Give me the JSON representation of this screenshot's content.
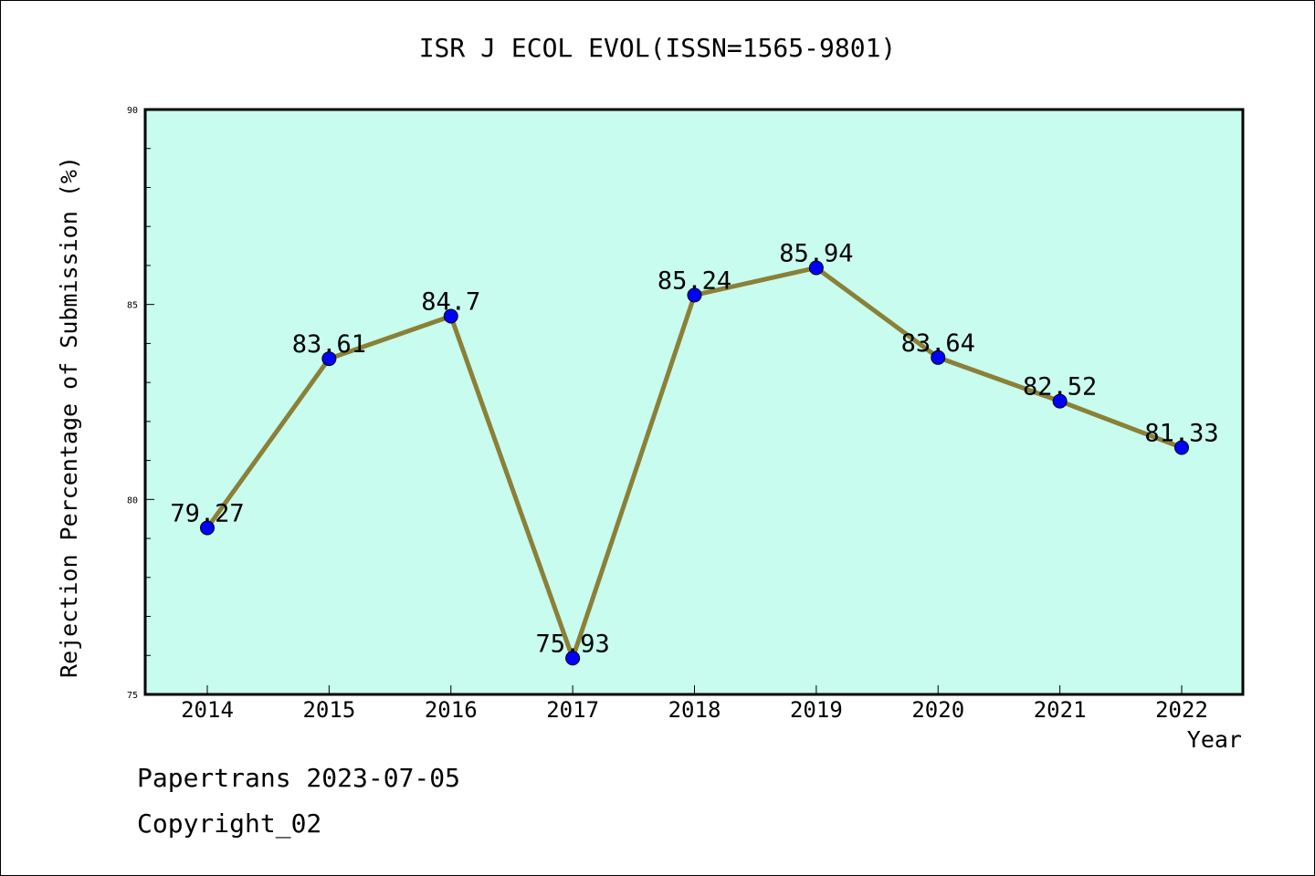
{
  "chart_data": {
    "type": "line",
    "title": "ISR J ECOL EVOL(ISSN=1565-9801)",
    "xlabel": "Year",
    "ylabel": "Rejection Percentage of Submission (%)",
    "categories": [
      "2014",
      "2015",
      "2016",
      "2017",
      "2018",
      "2019",
      "2020",
      "2021",
      "2022"
    ],
    "series": [
      {
        "values": [
          79.27,
          83.61,
          84.7,
          75.93,
          85.24,
          85.94,
          83.64,
          82.52,
          81.33
        ],
        "labels": [
          "79.27",
          "83.61",
          "84.7",
          "75.93",
          "85.24",
          "85.94",
          "83.64",
          "82.52",
          "81.33"
        ]
      }
    ],
    "ylim": [
      75,
      90
    ],
    "yticks": [
      "75",
      "80",
      "85",
      "90"
    ],
    "grid": false,
    "plot_background": "#c8fcee",
    "line_color": "#8b8038",
    "marker_color": "#0000ff"
  },
  "footer": {
    "line1": "Papertrans 2023-07-05",
    "line2": "Copyright_02"
  }
}
